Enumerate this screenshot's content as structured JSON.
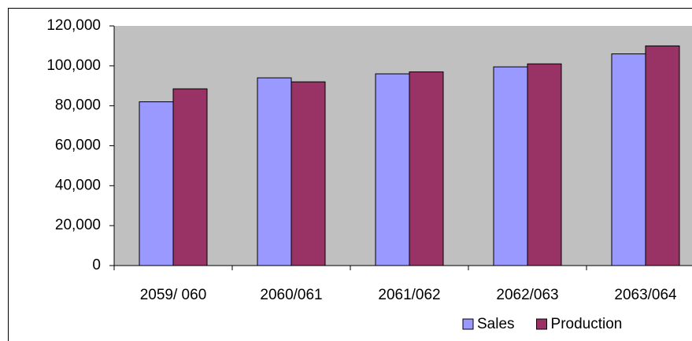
{
  "chart_data": {
    "type": "bar",
    "categories": [
      "2059/ 060",
      "2060/061",
      "2061/062",
      "2062/063",
      "2063/064"
    ],
    "series": [
      {
        "name": "Sales",
        "color": "#9999ff",
        "values": [
          82000,
          94000,
          96000,
          99500,
          106000
        ]
      },
      {
        "name": "Production",
        "color": "#993366",
        "values": [
          88500,
          92000,
          97000,
          101000,
          110000
        ]
      }
    ],
    "ylim": [
      0,
      120000
    ],
    "yticks": [
      0,
      {
        "value": 20000,
        "label": "20,000"
      },
      {
        "value": 40000,
        "label": "40,000"
      },
      {
        "value": 60000,
        "label": "60,000"
      },
      {
        "value": 80000,
        "label": "80,000"
      },
      {
        "value": 100000,
        "label": "100,000"
      },
      {
        "value": 120000,
        "label": "120,000"
      }
    ],
    "grid": false,
    "legend": "bottom-right",
    "plot_background": "#c0c0c0"
  }
}
